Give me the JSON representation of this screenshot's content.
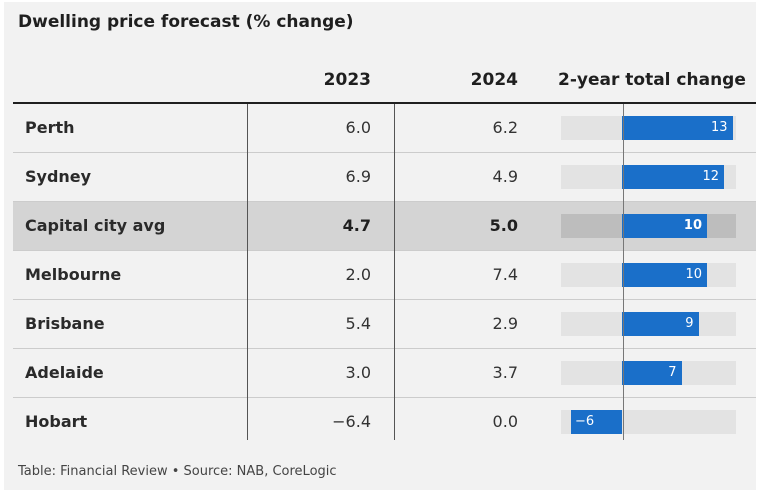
{
  "title": "Dwelling price forecast (% change)",
  "headers": {
    "city": "",
    "y2023": "2023",
    "y2024": "2024",
    "total": "2-year total change"
  },
  "footer": "Table: Financial Review • Source: NAB, CoreLogic",
  "colors": {
    "bar": "#1a6fc9",
    "highlight_row": "#d4d4d4",
    "track": "#e3e3e3"
  },
  "chart_data": {
    "type": "table",
    "title": "Dwelling price forecast (% change)",
    "columns": [
      "",
      "2023",
      "2024",
      "2-year total change"
    ],
    "bar_range": [
      -6,
      13
    ],
    "rows": [
      {
        "city": "Perth",
        "y2023": "6.0",
        "y2024": "6.2",
        "total": 13,
        "total_label": "13",
        "highlight": false
      },
      {
        "city": "Sydney",
        "y2023": "6.9",
        "y2024": "4.9",
        "total": 12,
        "total_label": "12",
        "highlight": false
      },
      {
        "city": "Capital city avg",
        "y2023": "4.7",
        "y2024": "5.0",
        "total": 10,
        "total_label": "10",
        "highlight": true
      },
      {
        "city": "Melbourne",
        "y2023": "2.0",
        "y2024": "7.4",
        "total": 10,
        "total_label": "10",
        "highlight": false
      },
      {
        "city": "Brisbane",
        "y2023": "5.4",
        "y2024": "2.9",
        "total": 9,
        "total_label": "9",
        "highlight": false
      },
      {
        "city": "Adelaide",
        "y2023": "3.0",
        "y2024": "3.7",
        "total": 7,
        "total_label": "7",
        "highlight": false
      },
      {
        "city": "Hobart",
        "y2023": "−6.4",
        "y2024": "0.0",
        "total": -6,
        "total_label": "−6",
        "highlight": false
      }
    ]
  }
}
